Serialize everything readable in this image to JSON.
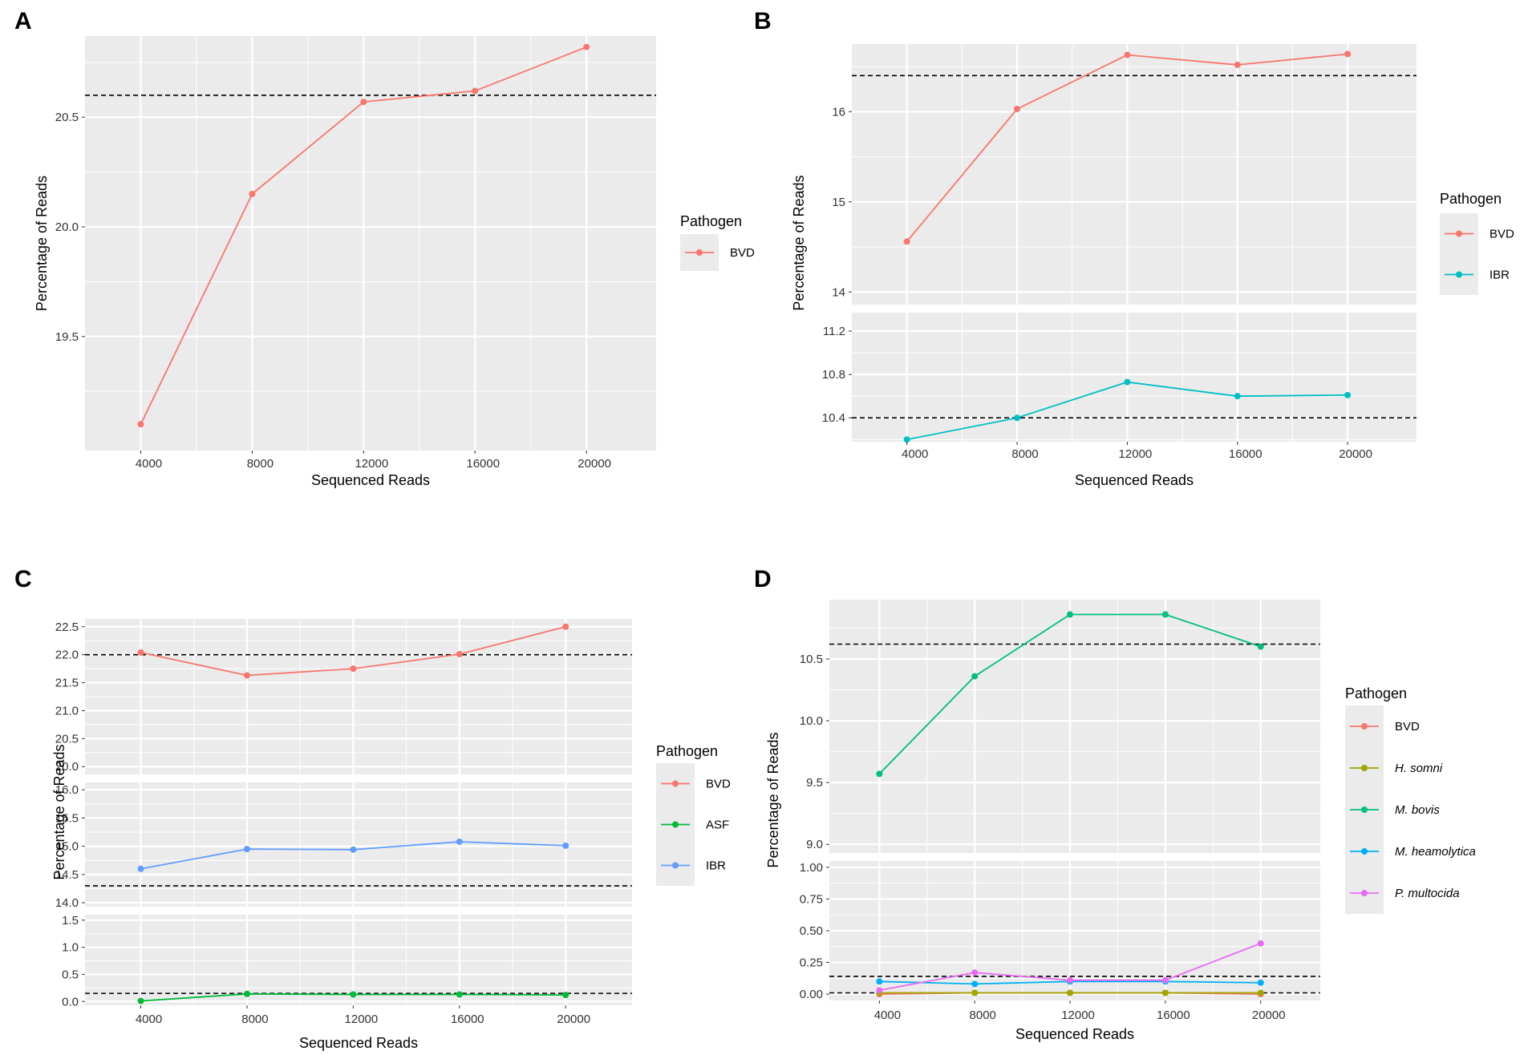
{
  "figure": {
    "x_label": "Sequenced Reads",
    "y_label": "Percentage of Reads",
    "legend_title": "Pathogen"
  },
  "colors": {
    "BVD": "#F8766D",
    "IBR": "#00BFC4",
    "IBR_C": "#619CFF",
    "ASF": "#00BA38",
    "H. somni": "#A3A500",
    "M. bovis": "#00BF7D",
    "M. heamolytica": "#00B0F6",
    "P. multocida": "#E76BF3",
    "panel_bg": "#EBEBEB",
    "grid": "#FFFFFF"
  },
  "chart_data": [
    {
      "panel": "A",
      "type": "line",
      "title": "",
      "xlabel": "Sequenced Reads",
      "ylabel": "Percentage of Reads",
      "x_ticks": [
        "4000",
        "8000",
        "12000",
        "16000",
        "20000"
      ],
      "x": [
        4000,
        8000,
        12000,
        16000,
        20000
      ],
      "xlim": [
        2000,
        22500
      ],
      "legend": {
        "title": "Pathogen",
        "entries": [
          "BVD"
        ],
        "placement": "right"
      },
      "facets": [
        {
          "ylim": [
            18.98,
            20.87
          ],
          "y_ticks": [
            19.5,
            20.0,
            20.5
          ],
          "y_tick_labels": [
            "19.5",
            "20.0",
            "20.5"
          ],
          "hline": 20.6,
          "series": [
            {
              "name": "BVD",
              "color": "#F8766D",
              "values": [
                19.1,
                20.15,
                20.57,
                20.62,
                20.82
              ]
            }
          ]
        }
      ]
    },
    {
      "panel": "B",
      "type": "line",
      "title": "",
      "xlabel": "Sequenced Reads",
      "ylabel": "Percentage of Reads",
      "x_ticks": [
        "4000",
        "8000",
        "12000",
        "16000",
        "20000"
      ],
      "x": [
        4000,
        8000,
        12000,
        16000,
        20000
      ],
      "xlim": [
        2000,
        22500
      ],
      "legend": {
        "title": "Pathogen",
        "entries": [
          "BVD",
          "IBR"
        ],
        "placement": "right"
      },
      "facets": [
        {
          "ylim": [
            13.86,
            16.75
          ],
          "y_ticks": [
            14,
            15,
            16
          ],
          "y_tick_labels": [
            "14",
            "15",
            "16"
          ],
          "hline": 16.4,
          "series": [
            {
              "name": "BVD",
              "color": "#F8766D",
              "values": [
                14.56,
                16.03,
                16.63,
                16.52,
                16.64
              ]
            }
          ]
        },
        {
          "ylim": [
            10.18,
            11.37
          ],
          "y_ticks": [
            10.4,
            10.8,
            11.2
          ],
          "y_tick_labels": [
            "10.4",
            "10.8",
            "11.2"
          ],
          "hline": 10.4,
          "series": [
            {
              "name": "IBR",
              "color": "#00BFC4",
              "values": [
                10.2,
                10.4,
                10.73,
                10.6,
                10.61
              ]
            }
          ]
        }
      ]
    },
    {
      "panel": "C",
      "type": "line",
      "title": "",
      "xlabel": "Sequenced Reads",
      "ylabel": "Percentage of Reads",
      "x_ticks": [
        "4000",
        "8000",
        "12000",
        "16000",
        "20000"
      ],
      "x": [
        4000,
        8000,
        12000,
        16000,
        20000
      ],
      "xlim": [
        1900,
        22500
      ],
      "legend": {
        "title": "Pathogen",
        "entries": [
          "BVD",
          "ASF",
          "IBR"
        ],
        "placement": "right"
      },
      "facets": [
        {
          "ylim": [
            19.86,
            22.64
          ],
          "y_ticks": [
            20.0,
            20.5,
            21.0,
            21.5,
            22.0,
            22.5
          ],
          "y_tick_labels": [
            "20.0",
            "20.5",
            "21.0",
            "21.5",
            "22.0",
            "22.5"
          ],
          "hline": 22.0,
          "series": [
            {
              "name": "BVD",
              "color": "#F8766D",
              "values": [
                22.04,
                21.63,
                21.75,
                22.01,
                22.5
              ]
            }
          ]
        },
        {
          "ylim": [
            13.93,
            16.13
          ],
          "y_ticks": [
            14.0,
            14.5,
            15.0,
            15.5,
            16.0
          ],
          "y_tick_labels": [
            "14.0",
            "14.5",
            "15.0",
            "15.5",
            "16.0"
          ],
          "hline": 14.3,
          "series": [
            {
              "name": "IBR",
              "color": "#619CFF",
              "values": [
                14.6,
                14.95,
                14.94,
                15.08,
                15.01
              ]
            }
          ]
        },
        {
          "ylim": [
            -0.07,
            1.6
          ],
          "y_ticks": [
            0.0,
            0.5,
            1.0,
            1.5
          ],
          "y_tick_labels": [
            "0.0",
            "0.5",
            "1.0",
            "1.5"
          ],
          "hline": 0.15,
          "series": [
            {
              "name": "ASF",
              "color": "#00BA38",
              "values": [
                0.01,
                0.14,
                0.13,
                0.13,
                0.12
              ]
            }
          ]
        }
      ]
    },
    {
      "panel": "D",
      "type": "line",
      "title": "",
      "xlabel": "Sequenced Reads",
      "ylabel": "Percentage of Reads",
      "x_ticks": [
        "4000",
        "8000",
        "12000",
        "16000",
        "20000"
      ],
      "x": [
        4000,
        8000,
        12000,
        16000,
        20000
      ],
      "xlim": [
        1900,
        22500
      ],
      "legend": {
        "title": "Pathogen",
        "entries": [
          "BVD",
          "H. somni",
          "M. bovis",
          "M. heamolytica",
          "P. multocida"
        ],
        "italic": [
          false,
          true,
          true,
          true,
          true
        ],
        "placement": "right"
      },
      "facets": [
        {
          "ylim": [
            8.93,
            10.98
          ],
          "y_ticks": [
            9.0,
            9.5,
            10.0,
            10.5
          ],
          "y_tick_labels": [
            "9.0",
            "9.5",
            "10.0",
            "10.5"
          ],
          "hline": 10.62,
          "series": [
            {
              "name": "M. bovis",
              "color": "#00BF7D",
              "values": [
                9.57,
                10.36,
                10.86,
                10.86,
                10.6
              ]
            }
          ]
        },
        {
          "ylim": [
            -0.05,
            1.05
          ],
          "y_ticks": [
            0.0,
            0.25,
            0.5,
            0.75,
            1.0
          ],
          "y_tick_labels": [
            "0.00",
            "0.25",
            "0.50",
            "0.75",
            "1.00"
          ],
          "hlines": [
            0.14,
            0.01
          ],
          "series": [
            {
              "name": "BVD",
              "color": "#F8766D",
              "values": [
                0.0,
                0.01,
                0.01,
                0.01,
                0.0
              ]
            },
            {
              "name": "H. somni",
              "color": "#A3A500",
              "values": [
                0.01,
                0.01,
                0.01,
                0.01,
                0.01
              ]
            },
            {
              "name": "M. heamolytica",
              "color": "#00B0F6",
              "values": [
                0.1,
                0.08,
                0.1,
                0.1,
                0.09
              ]
            },
            {
              "name": "P. multocida",
              "color": "#E76BF3",
              "values": [
                0.03,
                0.17,
                0.11,
                0.11,
                0.4
              ]
            }
          ]
        }
      ]
    }
  ]
}
